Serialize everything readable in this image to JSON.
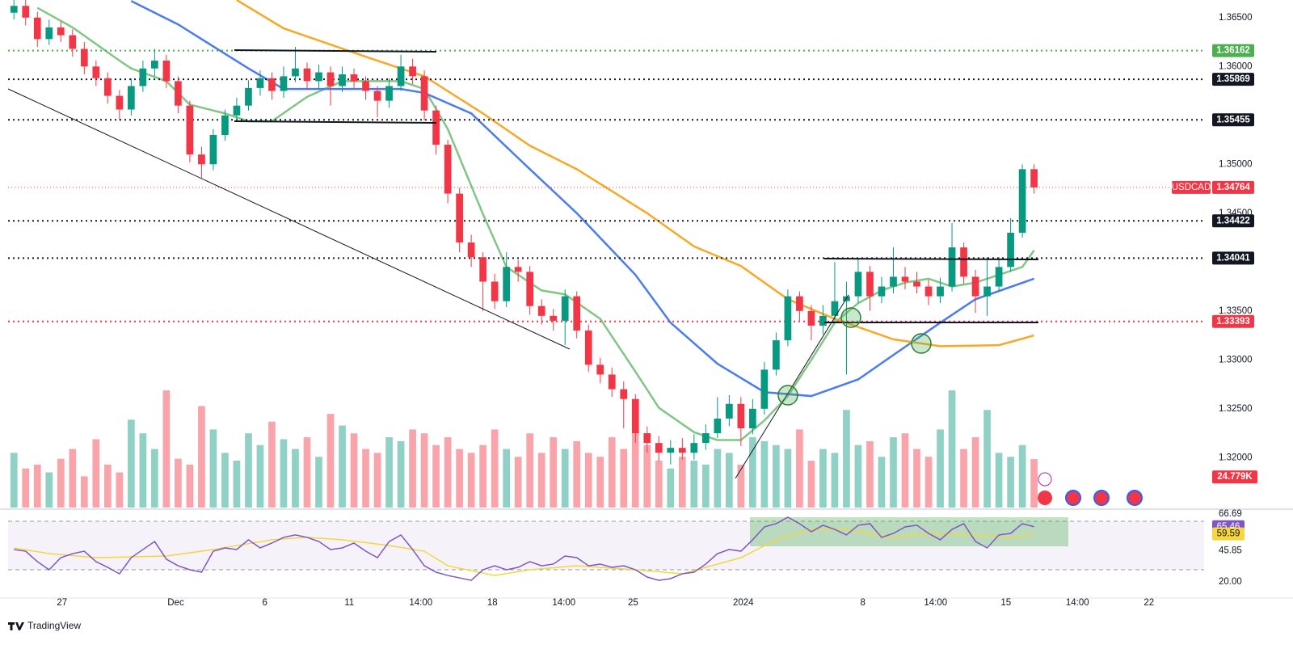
{
  "chart_data": {
    "type": "candlestick",
    "symbol": "USDCAD",
    "watermark": "TradingView",
    "up_color": "#089981",
    "down_color": "#f23645",
    "xlim": [
      -0.5,
      101.5
    ],
    "xticks": [
      {
        "value": 4.1,
        "label": "27"
      },
      {
        "value": 13.8,
        "label": "Dec"
      },
      {
        "value": 21.4,
        "label": "6"
      },
      {
        "value": 28.6,
        "label": "11"
      },
      {
        "value": 34.7,
        "label": "14:00"
      },
      {
        "value": 40.8,
        "label": "18"
      },
      {
        "value": 46.9,
        "label": "14:00"
      },
      {
        "value": 52.8,
        "label": "25"
      },
      {
        "value": 62.2,
        "label": "2024"
      },
      {
        "value": 72.4,
        "label": "8"
      },
      {
        "value": 78.6,
        "label": "14:00"
      },
      {
        "value": 84.6,
        "label": "15"
      },
      {
        "value": 90.7,
        "label": "14:00"
      },
      {
        "value": 96.8,
        "label": "22"
      }
    ],
    "ylim": [
      1.3149,
      1.3668
    ],
    "yticks": [
      {
        "value": 1.365,
        "label": "1.36500"
      },
      {
        "value": 1.36,
        "label": "1.36000"
      },
      {
        "value": 1.35,
        "label": "1.35000"
      },
      {
        "value": 1.345,
        "label": "1.34500"
      },
      {
        "value": 1.335,
        "label": "1.33500"
      },
      {
        "value": 1.33,
        "label": "1.33000"
      },
      {
        "value": 1.325,
        "label": "1.32500"
      },
      {
        "value": 1.32,
        "label": "1.32000"
      }
    ],
    "candles": {
      "open": [
        1.3655,
        1.3662,
        1.365,
        1.3628,
        1.364,
        1.3632,
        1.3618,
        1.36,
        1.3588,
        1.357,
        1.3556,
        1.358,
        1.3598,
        1.3606,
        1.3585,
        1.356,
        1.351,
        1.35,
        1.353,
        1.355,
        1.356,
        1.3578,
        1.3588,
        1.3575,
        1.359,
        1.3598,
        1.3585,
        1.3594,
        1.358,
        1.3592,
        1.3585,
        1.3575,
        1.3565,
        1.358,
        1.36,
        1.359,
        1.3555,
        1.352,
        1.347,
        1.342,
        1.3405,
        1.338,
        1.336,
        1.3395,
        1.339,
        1.3355,
        1.3345,
        1.334,
        1.3365,
        1.333,
        1.3295,
        1.3285,
        1.327,
        1.326,
        1.3225,
        1.3215,
        1.3205,
        1.321,
        1.3205,
        1.3215,
        1.3225,
        1.324,
        1.3255,
        1.323,
        1.325,
        1.329,
        1.332,
        1.3365,
        1.335,
        1.3335,
        1.3345,
        1.336,
        1.3365,
        1.339,
        1.3365,
        1.3375,
        1.3385,
        1.338,
        1.3375,
        1.3365,
        1.3375,
        1.3415,
        1.3385,
        1.3365,
        1.3375,
        1.3395,
        1.343,
        1.3495
      ],
      "high": [
        1.367,
        1.3668,
        1.3656,
        1.3648,
        1.3646,
        1.3638,
        1.3625,
        1.3606,
        1.3594,
        1.3576,
        1.3588,
        1.3606,
        1.3618,
        1.3612,
        1.359,
        1.3565,
        1.3518,
        1.3536,
        1.3556,
        1.3568,
        1.3586,
        1.3596,
        1.3594,
        1.36,
        1.362,
        1.3604,
        1.3602,
        1.36,
        1.36,
        1.3598,
        1.359,
        1.358,
        1.3588,
        1.3612,
        1.3608,
        1.3596,
        1.356,
        1.3525,
        1.3476,
        1.3428,
        1.341,
        1.3388,
        1.341,
        1.3402,
        1.3396,
        1.3362,
        1.3352,
        1.3372,
        1.337,
        1.3336,
        1.3302,
        1.3292,
        1.3278,
        1.3265,
        1.3232,
        1.3222,
        1.3218,
        1.322,
        1.3224,
        1.3234,
        1.3262,
        1.3264,
        1.3262,
        1.326,
        1.3298,
        1.3328,
        1.3372,
        1.337,
        1.3356,
        1.3356,
        1.34,
        1.338,
        1.3404,
        1.3396,
        1.3385,
        1.3415,
        1.3395,
        1.339,
        1.3382,
        1.3384,
        1.344,
        1.342,
        1.3392,
        1.3405,
        1.3405,
        1.3445,
        1.35,
        1.35
      ],
      "low": [
        1.3648,
        1.3642,
        1.362,
        1.3622,
        1.3625,
        1.361,
        1.3592,
        1.358,
        1.3562,
        1.3545,
        1.355,
        1.3574,
        1.359,
        1.3578,
        1.3552,
        1.3502,
        1.3486,
        1.3494,
        1.3524,
        1.3544,
        1.3555,
        1.357,
        1.3566,
        1.3568,
        1.3584,
        1.3576,
        1.3578,
        1.356,
        1.3574,
        1.3578,
        1.3566,
        1.3548,
        1.3558,
        1.3575,
        1.3582,
        1.3545,
        1.351,
        1.346,
        1.341,
        1.3395,
        1.335,
        1.3352,
        1.3354,
        1.338,
        1.3346,
        1.3336,
        1.333,
        1.3315,
        1.3322,
        1.3288,
        1.3276,
        1.3262,
        1.323,
        1.3215,
        1.3205,
        1.3196,
        1.3193,
        1.3198,
        1.3198,
        1.3208,
        1.322,
        1.3232,
        1.3212,
        1.3224,
        1.3244,
        1.3284,
        1.3314,
        1.334,
        1.332,
        1.3326,
        1.3338,
        1.3285,
        1.3358,
        1.335,
        1.3358,
        1.3368,
        1.3372,
        1.3368,
        1.3356,
        1.3358,
        1.337,
        1.3378,
        1.3348,
        1.3345,
        1.337,
        1.339,
        1.3425,
        1.347
      ],
      "close": [
        1.3662,
        1.365,
        1.3628,
        1.364,
        1.3632,
        1.3618,
        1.36,
        1.3588,
        1.357,
        1.3556,
        1.358,
        1.3598,
        1.3606,
        1.3585,
        1.356,
        1.351,
        1.35,
        1.353,
        1.355,
        1.356,
        1.3578,
        1.3588,
        1.3575,
        1.359,
        1.3598,
        1.3585,
        1.3594,
        1.358,
        1.3592,
        1.3585,
        1.3575,
        1.3565,
        1.358,
        1.36,
        1.359,
        1.3555,
        1.352,
        1.347,
        1.342,
        1.3405,
        1.338,
        1.336,
        1.3395,
        1.339,
        1.3355,
        1.3345,
        1.334,
        1.3365,
        1.333,
        1.3295,
        1.3285,
        1.327,
        1.326,
        1.3225,
        1.3215,
        1.3205,
        1.321,
        1.3205,
        1.3215,
        1.3225,
        1.324,
        1.3255,
        1.323,
        1.325,
        1.329,
        1.332,
        1.3365,
        1.335,
        1.3335,
        1.3345,
        1.336,
        1.3365,
        1.339,
        1.3365,
        1.3375,
        1.3385,
        1.338,
        1.3375,
        1.3365,
        1.3375,
        1.3415,
        1.3385,
        1.3365,
        1.3375,
        1.3395,
        1.343,
        1.3495,
        1.34764
      ]
    },
    "volume": {
      "ylim": [
        0,
        260
      ],
      "values": [
        28,
        20,
        22,
        18,
        25,
        30,
        16,
        35,
        22,
        18,
        45,
        38,
        30,
        60,
        25,
        22,
        52,
        40,
        28,
        24,
        38,
        32,
        44,
        35,
        30,
        36,
        26,
        48,
        42,
        38,
        30,
        28,
        36,
        34,
        40,
        38,
        32,
        36,
        30,
        28,
        32,
        40,
        30,
        26,
        38,
        28,
        36,
        30,
        34,
        28,
        26,
        36,
        30,
        38,
        32,
        24,
        20,
        26,
        24,
        22,
        30,
        28,
        22,
        36,
        34,
        32,
        30,
        40,
        24,
        30,
        28,
        50,
        32,
        34,
        26,
        36,
        38,
        30,
        26,
        40,
        60,
        30,
        36,
        50,
        28,
        26,
        32,
        24.779
      ],
      "value_labels": [
        null,
        null,
        null,
        null,
        null,
        null,
        null,
        null,
        null,
        null,
        null,
        null,
        null,
        null,
        null,
        null,
        null,
        null,
        null,
        null,
        null,
        null,
        null,
        null,
        null,
        null,
        null,
        null,
        null,
        null,
        null,
        null,
        null,
        null,
        null,
        null,
        null,
        null,
        null,
        null,
        null,
        null,
        null,
        null,
        null,
        null,
        null,
        null,
        null,
        null,
        null,
        null,
        null,
        null,
        null,
        null,
        null,
        null,
        null,
        null,
        null,
        null,
        null,
        null,
        null,
        null,
        null,
        null,
        null,
        null,
        null,
        null,
        null,
        null,
        null,
        null,
        null,
        null,
        null,
        null,
        null,
        null,
        null,
        null,
        null,
        null,
        null,
        "24.779K"
      ]
    },
    "moving_averages": [
      {
        "color": "#81c784",
        "x": [
          2,
          5,
          9,
          10,
          13,
          15,
          18,
          20,
          22,
          25,
          28,
          30,
          33,
          35,
          37,
          40,
          42,
          45,
          47,
          50,
          53,
          55,
          58,
          60,
          62,
          64,
          66,
          68,
          70,
          72,
          74,
          76,
          78,
          80,
          82,
          84,
          86,
          87
        ],
        "values": [
          1.366,
          1.364,
          1.3606,
          1.3598,
          1.3585,
          1.3561,
          1.3552,
          1.3544,
          1.3544,
          1.3569,
          1.3585,
          1.3585,
          1.3585,
          1.3577,
          1.3536,
          1.3449,
          1.3395,
          1.3371,
          1.3367,
          1.3342,
          1.3288,
          1.3251,
          1.3226,
          1.3218,
          1.3218,
          1.3238,
          1.3263,
          1.33,
          1.3338,
          1.3358,
          1.3371,
          1.3379,
          1.3383,
          1.3375,
          1.3379,
          1.3387,
          1.3395,
          1.3412
        ]
      },
      {
        "color": "#4a7cf0",
        "x": [
          10,
          14,
          20,
          23,
          28,
          33,
          35,
          39,
          44,
          48,
          53,
          56,
          60,
          64,
          68,
          72,
          75,
          79,
          82,
          87
        ],
        "values": [
          1.3667,
          1.3643,
          1.3598,
          1.3577,
          1.3577,
          1.3577,
          1.3573,
          1.3552,
          1.3495,
          1.345,
          1.3387,
          1.3338,
          1.3296,
          1.3267,
          1.3263,
          1.328,
          1.3305,
          1.3338,
          1.3362,
          1.3383
        ]
      },
      {
        "color": "#f7a825",
        "x": [
          19,
          23,
          30,
          35,
          40,
          44,
          48,
          54,
          58,
          62,
          66,
          70,
          75,
          79,
          84,
          87
        ],
        "values": [
          1.3668,
          1.3639,
          1.361,
          1.359,
          1.3552,
          1.3519,
          1.3495,
          1.345,
          1.3416,
          1.3396,
          1.3362,
          1.3342,
          1.3321,
          1.3314,
          1.3315,
          1.3325
        ]
      }
    ],
    "levels": [
      {
        "value": 1.36162,
        "color": "#4caf50"
      },
      {
        "value": 1.35869,
        "color": "#131722"
      },
      {
        "value": 1.35455,
        "color": "#131722"
      },
      {
        "value": 1.34422,
        "color": "#131722"
      },
      {
        "value": 1.34041,
        "color": "#131722"
      },
      {
        "value": 1.33393,
        "color": "#f23645"
      }
    ],
    "rsi": {
      "ylim": [
        6.7,
        79.3
      ],
      "yticks": [
        66.69,
        45.85,
        {
          "value": 20,
          "label": "20.00"
        }
      ],
      "color": "#7e57c2",
      "values": [
        46.7,
        45.3,
        36.7,
        30,
        40,
        43.3,
        45.3,
        36.7,
        32,
        26.7,
        40,
        46.7,
        53.3,
        38.7,
        33.3,
        30,
        28,
        45.3,
        48,
        46.7,
        54.7,
        48,
        52,
        56.7,
        58.7,
        56.7,
        53.3,
        46.7,
        48,
        52,
        45.3,
        40,
        53.3,
        58.7,
        46.7,
        33.3,
        28,
        25.3,
        23.3,
        21.3,
        30,
        33.3,
        30,
        32,
        36.7,
        33.3,
        34.7,
        41.3,
        40,
        33.3,
        34.7,
        32,
        33.3,
        30,
        24,
        21.3,
        22.7,
        26.7,
        28,
        34.7,
        43.3,
        46.7,
        45.3,
        54.7,
        65.3,
        68,
        73.3,
        68,
        61.3,
        66.7,
        63.3,
        58.7,
        66.7,
        68,
        56.7,
        60,
        65.3,
        66.7,
        60,
        54.7,
        63.3,
        68,
        53.3,
        48,
        58.7,
        60,
        68,
        65.46
      ],
      "ma": {
        "color": "#f5d63d",
        "x": [
          0,
          3,
          7,
          13,
          17,
          22,
          25,
          28,
          32,
          35,
          37,
          41,
          44,
          48,
          53,
          57,
          59,
          62,
          65,
          68,
          71,
          75,
          78,
          82,
          85,
          87
        ],
        "values": [
          48,
          43.3,
          40,
          41.3,
          46.7,
          54.7,
          56.7,
          54.7,
          50,
          45.3,
          33.3,
          25.3,
          30,
          33.3,
          30,
          26.7,
          32,
          40,
          54.7,
          63.3,
          63.3,
          56.7,
          60,
          58.7,
          56.7,
          59.59
        ]
      }
    }
  }
}
